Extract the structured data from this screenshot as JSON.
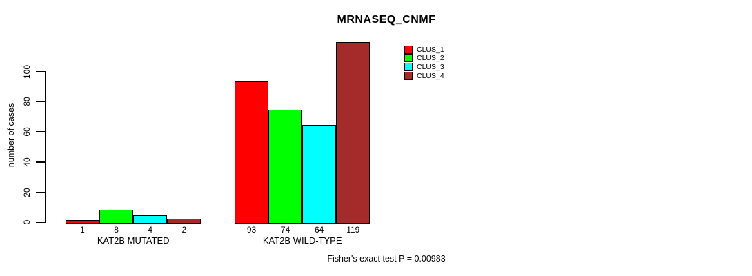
{
  "title": "MRNASEQ_CNMF",
  "footer": "Fisher's exact test P = 0.00983",
  "colors": {
    "clus_1": "#FF0000",
    "clus_2": "#00FF00",
    "clus_3": "#00FFFF",
    "clus_4": "#A52A2A",
    "bar_border": "#000000",
    "background": "#FFFFFF"
  },
  "chart_data": {
    "type": "bar",
    "title": "MRNASEQ_CNMF",
    "xlabel": "",
    "ylabel": "number of cases",
    "ylim": [
      0,
      119
    ],
    "yticks": [
      0,
      20,
      40,
      60,
      80,
      100
    ],
    "grid": false,
    "legend_position": "top-right",
    "legend": [
      {
        "label": "CLUS_1",
        "color": "#FF0000"
      },
      {
        "label": "CLUS_2",
        "color": "#00FF00"
      },
      {
        "label": "CLUS_3",
        "color": "#00FFFF"
      },
      {
        "label": "CLUS_4",
        "color": "#A52A2A"
      }
    ],
    "series_colors": [
      "#FF0000",
      "#00FF00",
      "#00FFFF",
      "#A52A2A"
    ],
    "groups": [
      {
        "label": "KAT2B MUTATED",
        "values": [
          1,
          8,
          4,
          2
        ]
      },
      {
        "label": "KAT2B WILD-TYPE",
        "values": [
          93,
          74,
          64,
          119
        ]
      }
    ],
    "annotation": "Fisher's exact test P = 0.00983"
  }
}
